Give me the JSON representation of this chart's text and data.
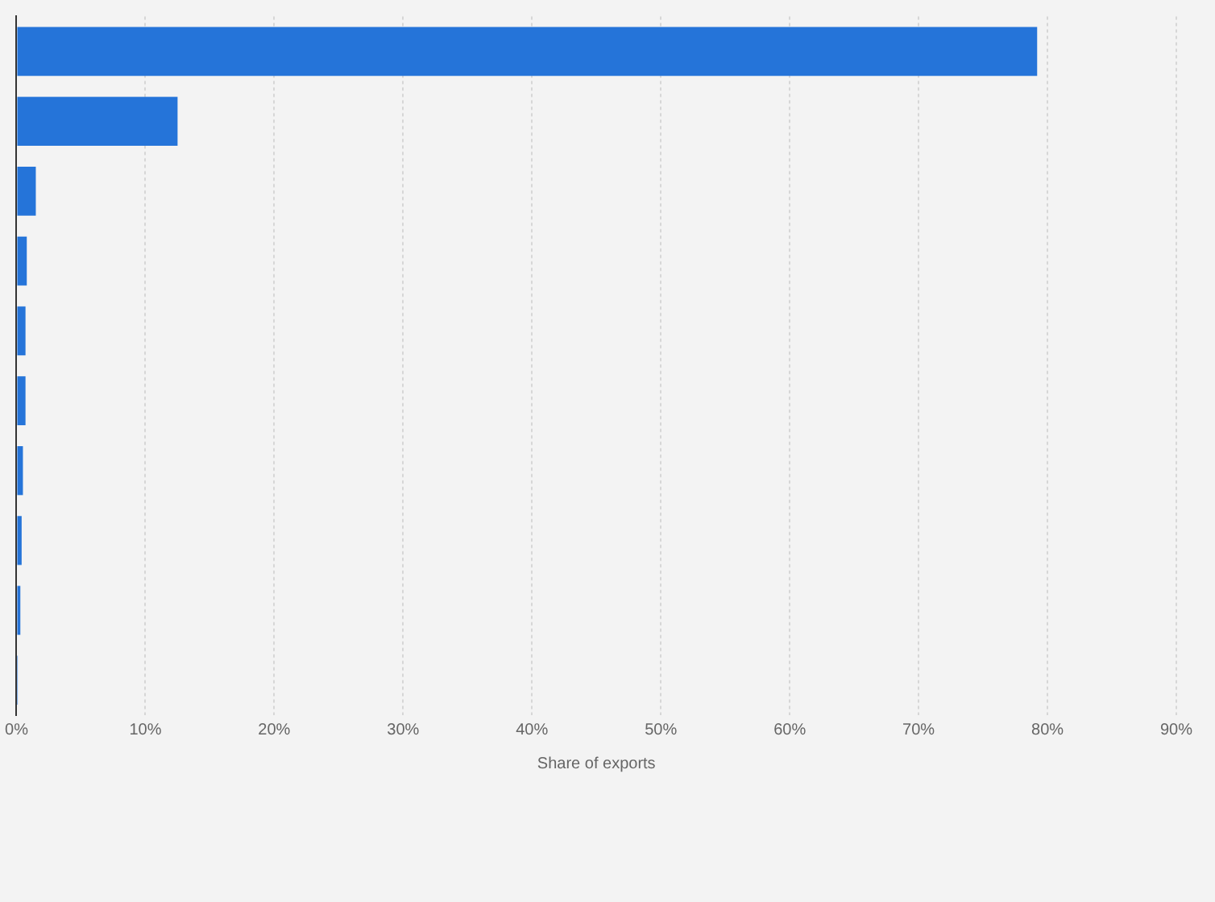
{
  "chart_data": {
    "type": "bar",
    "orientation": "horizontal",
    "xlabel": "Share of exports",
    "categories": [
      null,
      null,
      null,
      null,
      null,
      null,
      null,
      null,
      null,
      null
    ],
    "values": [
      79.2,
      12.5,
      1.5,
      0.8,
      0.7,
      0.7,
      0.5,
      0.4,
      0.3,
      0.1
    ],
    "color": "#2574d9",
    "xlim": [
      0,
      90
    ],
    "xticks": [
      {
        "value": 0,
        "label": "0%"
      },
      {
        "value": 10,
        "label": "10%"
      },
      {
        "value": 20,
        "label": "20%"
      },
      {
        "value": 30,
        "label": "30%"
      },
      {
        "value": 40,
        "label": "40%"
      },
      {
        "value": 50,
        "label": "50%"
      },
      {
        "value": 60,
        "label": "60%"
      },
      {
        "value": 70,
        "label": "70%"
      },
      {
        "value": 80,
        "label": "80%"
      },
      {
        "value": 90,
        "label": "90%"
      }
    ],
    "grid": "x",
    "legend": false
  }
}
